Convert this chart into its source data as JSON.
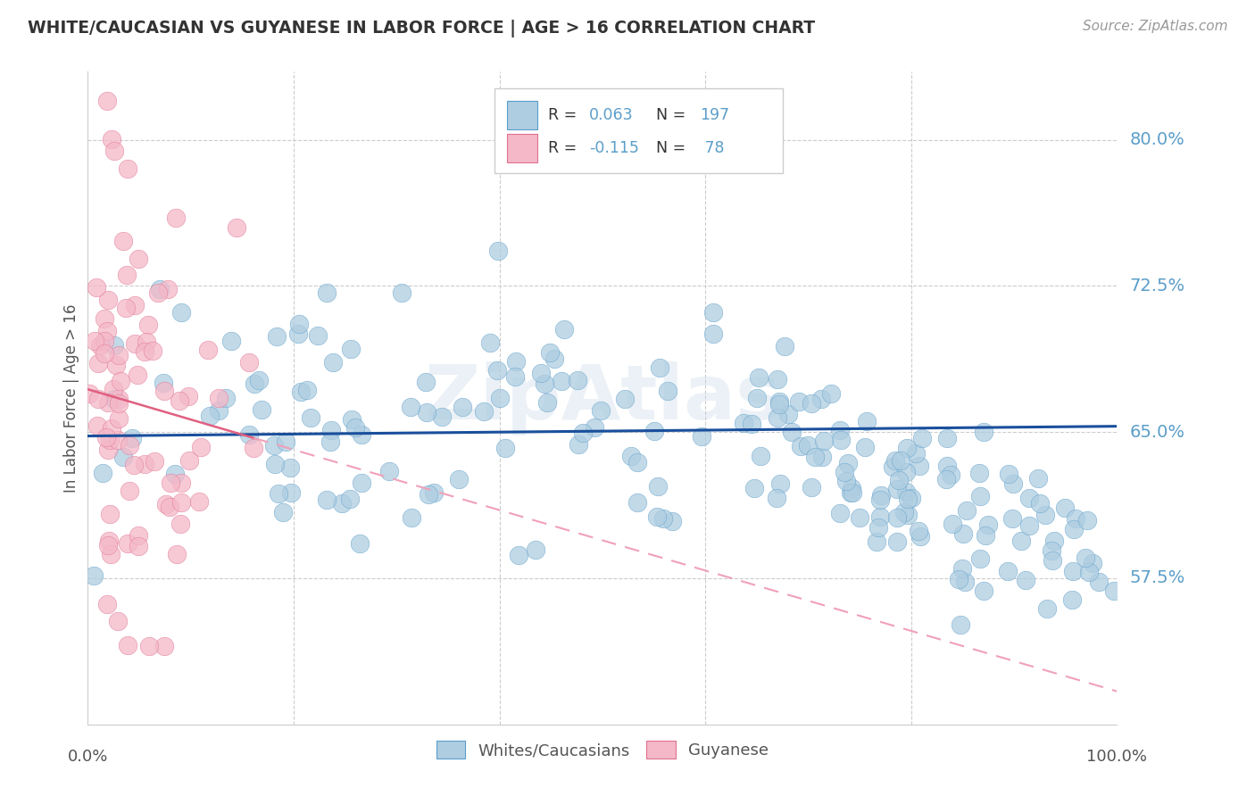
{
  "title": "WHITE/CAUCASIAN VS GUYANESE IN LABOR FORCE | AGE > 16 CORRELATION CHART",
  "source": "Source: ZipAtlas.com",
  "ylabel": "In Labor Force | Age > 16",
  "yticks": [
    57.5,
    65.0,
    72.5,
    80.0
  ],
  "ytick_labels": [
    "57.5%",
    "65.0%",
    "72.5%",
    "80.0%"
  ],
  "xlim": [
    0.0,
    1.0
  ],
  "ylim": [
    50.0,
    83.5
  ],
  "blue_R": 0.063,
  "blue_N": 197,
  "pink_R": -0.115,
  "pink_N": 78,
  "blue_color": "#aecde1",
  "blue_edge": "#5b9ec9",
  "pink_color": "#f4b8c8",
  "pink_edge": "#e07090",
  "trend_blue_color": "#1a4f9c",
  "trend_pink_solid": "#e06080",
  "trend_pink_dash": "#f0a0b8",
  "watermark": "ZipAtlas",
  "legend_label_blue": "Whites/Caucasians",
  "legend_label_pink": "Guyanese"
}
